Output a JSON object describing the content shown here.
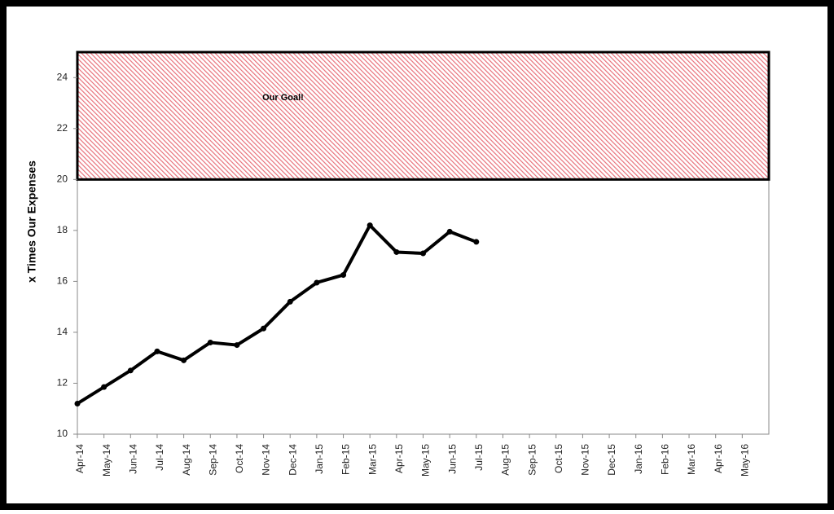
{
  "chart_data": {
    "type": "line",
    "y_axis_label": "x Times Our Expenses",
    "categories": [
      "Apr-14",
      "May-14",
      "Jun-14",
      "Jul-14",
      "Aug-14",
      "Sep-14",
      "Oct-14",
      "Nov-14",
      "Dec-14",
      "Jan-15",
      "Feb-15",
      "Mar-15",
      "Apr-15",
      "May-15",
      "Jun-15",
      "Jul-15",
      "Aug-15",
      "Sep-15",
      "Oct-15",
      "Nov-15",
      "Dec-15",
      "Jan-16",
      "Feb-16",
      "Mar-16",
      "Apr-16",
      "May-16"
    ],
    "series": [
      {
        "name": "x Times Our Expenses",
        "color": "#000000",
        "values": [
          11.2,
          11.85,
          12.5,
          13.25,
          12.9,
          13.6,
          13.5,
          14.15,
          15.2,
          15.95,
          16.25,
          18.2,
          17.15,
          17.1,
          17.95,
          17.55,
          null,
          null,
          null,
          null,
          null,
          null,
          null,
          null,
          null,
          null
        ]
      }
    ],
    "goal_band": {
      "label": "Our Goal!",
      "from": 20,
      "to": 25,
      "color": "#e8707a"
    },
    "ylim": [
      10,
      25
    ],
    "yticks": [
      10,
      12,
      14,
      16,
      18,
      20,
      22,
      24
    ],
    "grid": false
  }
}
